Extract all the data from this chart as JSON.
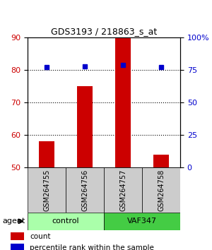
{
  "title": "GDS3193 / 218863_s_at",
  "samples": [
    "GSM264755",
    "GSM264756",
    "GSM264757",
    "GSM264758"
  ],
  "counts": [
    58,
    75,
    90,
    54
  ],
  "percentile_ranks": [
    77,
    78,
    79,
    77
  ],
  "ylim_left": [
    50,
    90
  ],
  "ylim_right": [
    0,
    100
  ],
  "yticks_left": [
    50,
    60,
    70,
    80,
    90
  ],
  "yticks_right": [
    0,
    25,
    50,
    75,
    100
  ],
  "ytick_labels_right": [
    "0",
    "25",
    "50",
    "75",
    "100%"
  ],
  "bar_color": "#cc0000",
  "dot_color": "#0000cc",
  "groups": [
    {
      "label": "control",
      "samples": [
        0,
        1
      ],
      "color": "#aaffaa"
    },
    {
      "label": "VAF347",
      "samples": [
        2,
        3
      ],
      "color": "#44cc44"
    }
  ],
  "group_label": "agent",
  "legend_count_label": "count",
  "legend_pct_label": "percentile rank within the sample",
  "grid_yticks": [
    60,
    70,
    80
  ],
  "bar_width": 0.4
}
